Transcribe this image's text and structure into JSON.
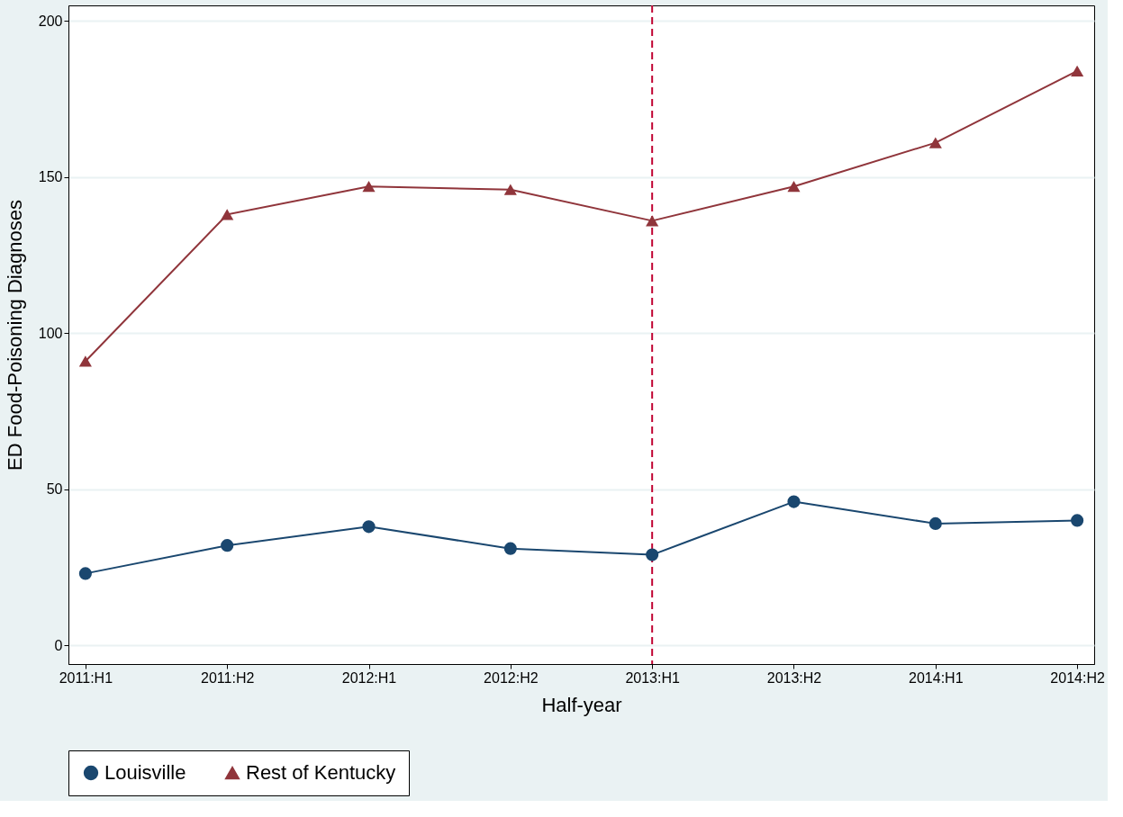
{
  "chart_data": {
    "type": "line",
    "xlabel": "Half-year",
    "ylabel": "ED Food-Poisoning Diagnoses",
    "categories": [
      "2011:H1",
      "2011:H2",
      "2012:H1",
      "2012:H2",
      "2013:H1",
      "2013:H2",
      "2014:H1",
      "2014:H2"
    ],
    "series": [
      {
        "name": "Louisville",
        "color": "#1a476f",
        "marker": "circle",
        "values": [
          23,
          32,
          38,
          31,
          29,
          46,
          39,
          40
        ]
      },
      {
        "name": "Rest of Kentucky",
        "color": "#90353b",
        "marker": "triangle",
        "values": [
          91,
          138,
          147,
          146,
          136,
          147,
          161,
          184
        ]
      }
    ],
    "ylim": [
      -6,
      205
    ],
    "yticks": [
      0,
      50,
      100,
      150,
      200
    ],
    "grid": "y",
    "legend": "bottom",
    "line_style": "solid",
    "ref_lines": [
      {
        "axis": "x",
        "value": "2013:H1",
        "color": "#c10534",
        "line_style": "dashed"
      }
    ]
  }
}
